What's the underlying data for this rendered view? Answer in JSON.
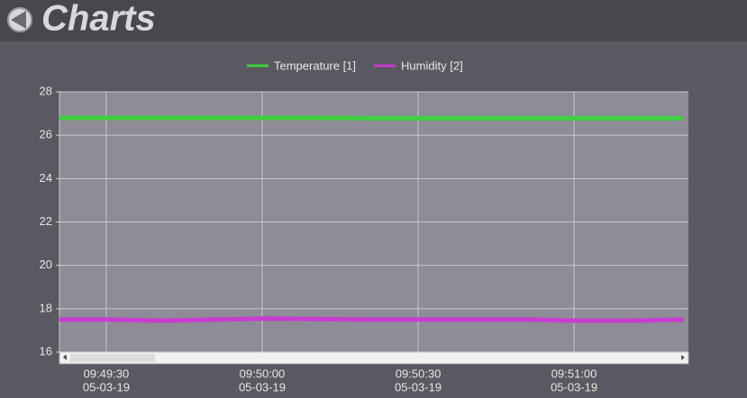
{
  "header": {
    "title": "Charts"
  },
  "chart_data": {
    "type": "line",
    "x": [
      "05-03-19 09:49:21",
      "05-03-19 09:49:31",
      "05-03-19 09:49:41",
      "05-03-19 09:49:51",
      "05-03-19 09:50:01",
      "05-03-19 09:50:11",
      "05-03-19 09:50:21",
      "05-03-19 09:50:31",
      "05-03-19 09:50:41",
      "05-03-19 09:50:51",
      "05-03-19 09:51:01",
      "05-03-19 09:51:11",
      "05-03-19 09:51:21"
    ],
    "series": [
      {
        "name": "Temperature [1]",
        "color": "#3fcf3f",
        "values": [
          26.8,
          26.8,
          26.8,
          26.8,
          26.8,
          26.8,
          26.78,
          26.78,
          26.78,
          26.78,
          26.78,
          26.78,
          26.78
        ]
      },
      {
        "name": "Humidity [2]",
        "color": "#c83cd0",
        "values": [
          17.5,
          17.5,
          17.45,
          17.5,
          17.55,
          17.52,
          17.5,
          17.5,
          17.5,
          17.5,
          17.45,
          17.45,
          17.5
        ]
      }
    ],
    "xlim": [
      "05-03-19 09:49:21",
      "05-03-19 09:51:22"
    ],
    "xticks": [
      {
        "value": "05-03-19 09:49:30",
        "label": [
          "09:49:30",
          "05-03-19"
        ]
      },
      {
        "value": "05-03-19 09:50:00",
        "label": [
          "09:50:00",
          "05-03-19"
        ]
      },
      {
        "value": "05-03-19 09:50:30",
        "label": [
          "09:50:30",
          "05-03-19"
        ]
      },
      {
        "value": "05-03-19 09:51:00",
        "label": [
          "09:51:00",
          "05-03-19"
        ]
      }
    ],
    "ylim": [
      16,
      28
    ],
    "yticks": [
      16,
      18,
      20,
      22,
      24,
      26,
      28
    ],
    "grid": true,
    "legend": "top"
  }
}
